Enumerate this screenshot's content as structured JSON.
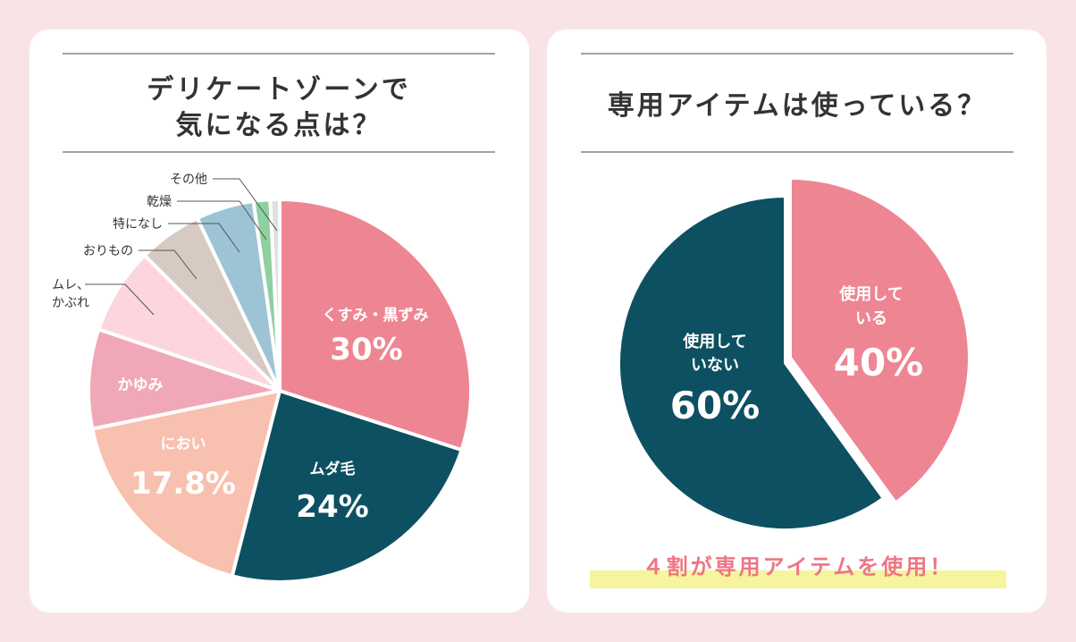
{
  "colors": {
    "background": "#f8e4e6",
    "highlight": "#f6f49c",
    "accent_text": "#ee7585"
  },
  "chart_data": [
    {
      "type": "pie",
      "title": "デリケートゾーンで気になる点は？",
      "title_lines": [
        "デリケートゾーンで",
        "気になる点は？"
      ],
      "start": "top",
      "direction": "clockwise",
      "slices": [
        {
          "name": "くすみ・黒ずみ",
          "value": 30,
          "label": "30%",
          "color": "#ee8593"
        },
        {
          "name": "ムダ毛",
          "value": 24,
          "label": "24%",
          "color": "#0d5062"
        },
        {
          "name": "におい",
          "value": 17.8,
          "label": "17.8%",
          "color": "#f8c0ae"
        },
        {
          "name": "かゆみ",
          "value": 8.4,
          "color": "#f0a8b8"
        },
        {
          "name": "ムレ、かぶれ",
          "name_lines": [
            "ムレ、",
            "かぶれ"
          ],
          "value": 7.3,
          "color": "#fdd5dc"
        },
        {
          "name": "おりもの",
          "value": 5.4,
          "color": "#d6cac2"
        },
        {
          "name": "特になし",
          "value": 4.9,
          "color": "#9dc4d4"
        },
        {
          "name": "乾燥",
          "value": 1.4,
          "color": "#8fd0a0"
        },
        {
          "name": "その他",
          "value": 0.8,
          "color": "#e0e0e0"
        }
      ]
    },
    {
      "type": "pie",
      "title": "専用アイテムは使っている？",
      "start": "top",
      "direction": "clockwise",
      "slices": [
        {
          "name": "使用している",
          "name_lines": [
            "使用して",
            "いる"
          ],
          "value": 40,
          "label": "40%",
          "color": "#ee8593"
        },
        {
          "name": "使用していない",
          "name_lines": [
            "使用して",
            "いない"
          ],
          "value": 60,
          "label": "60%",
          "color": "#0d5062"
        }
      ],
      "annotation": "４割が専用アイテムを使用！"
    }
  ]
}
